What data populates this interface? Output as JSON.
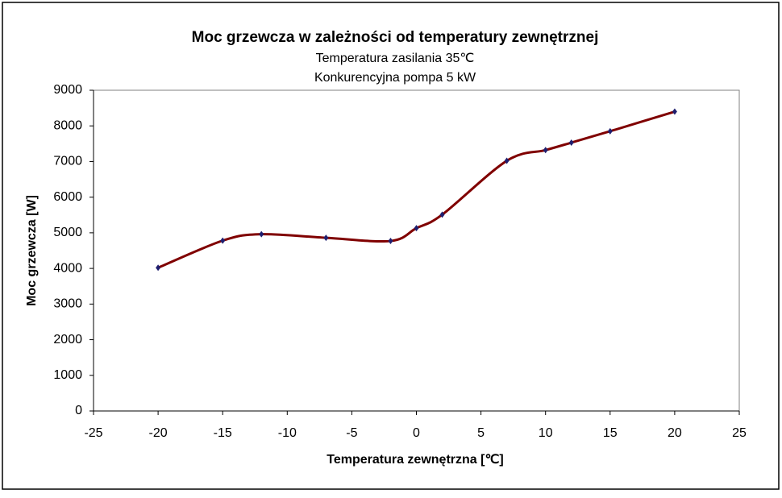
{
  "chart_data": {
    "type": "line",
    "title": "Moc grzewcza w zależności od temperatury zewnętrznej",
    "subtitle": [
      "Temperatura zasilania 35℃",
      "Konkurencyjna pompa 5 kW"
    ],
    "x_label": "Temperatura zewnętrzna [℃]",
    "y_label": "Moc grzewcza [W]",
    "x": [
      -20,
      -15,
      -12,
      -7,
      -2,
      0,
      2,
      7,
      10,
      12,
      15,
      20
    ],
    "series": [
      {
        "color": "#800000",
        "marker_color": "#1f1f6f",
        "values": [
          4020,
          4780,
          4960,
          4860,
          4770,
          5130,
          5510,
          7020,
          7320,
          7530,
          7850,
          8400
        ]
      }
    ],
    "xlim": [
      -25,
      25
    ],
    "xticks": [
      -25,
      -20,
      -15,
      -10,
      -5,
      0,
      5,
      10,
      15,
      20,
      25
    ],
    "ylim": [
      0,
      9000
    ],
    "yticks": [
      0,
      1000,
      2000,
      3000,
      4000,
      5000,
      6000,
      7000,
      8000,
      9000
    ],
    "grid": false,
    "smooth": true
  }
}
